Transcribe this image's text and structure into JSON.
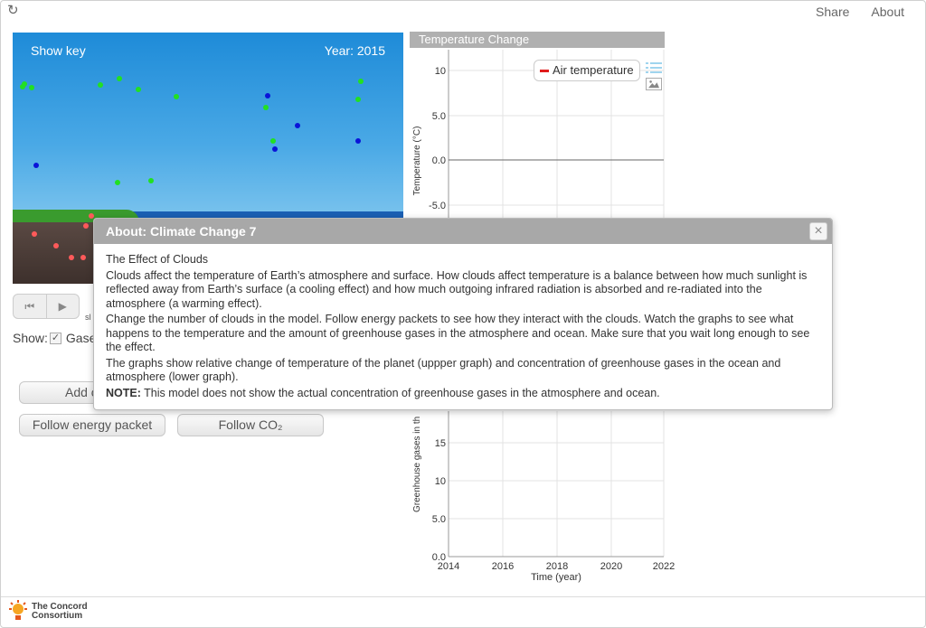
{
  "header": {
    "reload_icon": "reload-icon",
    "share_label": "Share",
    "about_label": "About"
  },
  "model": {
    "show_key_label": "Show key",
    "year_label": "Year: 2015"
  },
  "controls": {
    "reset_icon": "skip-back-icon",
    "play_icon": "play-icon",
    "slow_label": "sl",
    "show_label": "Show:",
    "gases_label": "Gase",
    "add_button_label": "Add c",
    "follow_energy_label": "Follow energy packet",
    "follow_co2_label": "Follow CO₂"
  },
  "graph": {
    "title": "Temperature Change",
    "legend_label": "Air temperature",
    "legend_color": "#e01b1b",
    "upper_ylabel": "Temperature (°C)",
    "upper_ticks": [
      "10",
      "5.0",
      "0.0",
      "-5.0"
    ],
    "lower_ylabel": "Greenhouse gases in th",
    "lower_ticks": [
      "15",
      "10",
      "5.0",
      "0.0"
    ],
    "x_ticks": [
      "2014",
      "2016",
      "2018",
      "2020",
      "2022"
    ],
    "xlabel": "Time (year)"
  },
  "dialog": {
    "title": "About: Climate Change 7",
    "heading": "The Effect of Clouds",
    "p1": "Clouds affect the temperature of Earth’s atmosphere and surface. How clouds affect temperature is a balance between how much sunlight is reflected away from Earth’s surface (a cooling effect) and how much outgoing infrared radiation is absorbed and re-radiated into the atmosphere (a warming effect).",
    "p2": "Change the number of clouds in the model. Follow energy packets to see how they interact with the clouds. Watch the graphs to see what happens to the temperature and the amount of greenhouse gases in the atmosphere and ocean. Make sure that you wait long enough to see the effect.",
    "p3": "The graphs show relative change of temperature of the planet (uppper graph) and concentration of greenhouse gases in the ocean and atmosphere (lower graph).",
    "note_label": "NOTE:",
    "note_text": " This model does not show the actual concentration of greenhouse gases in the atmosphere and ocean."
  },
  "footer": {
    "logo_line1": "The Concord",
    "logo_line2": "Consortium",
    "logo_prefix": "The"
  }
}
